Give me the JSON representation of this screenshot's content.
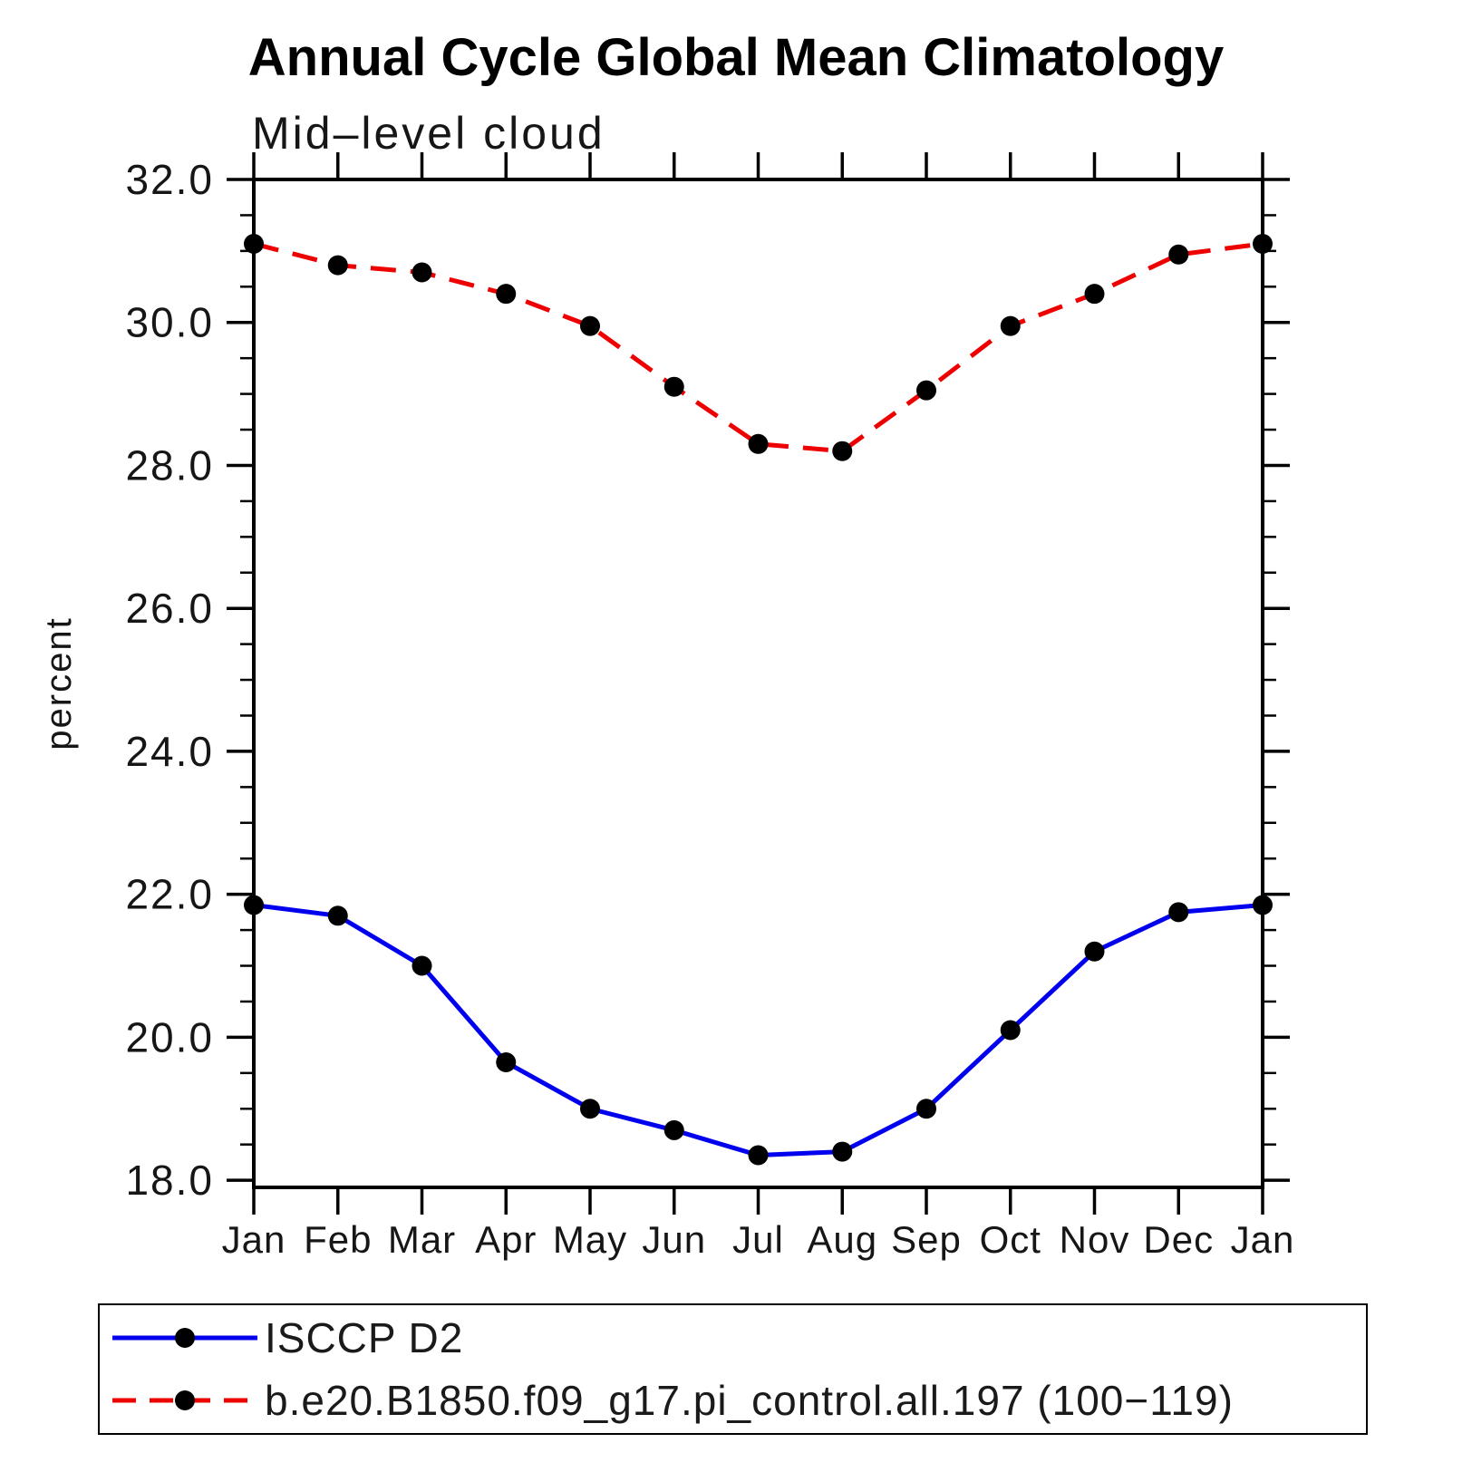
{
  "page": {
    "background": "#ffffff"
  },
  "chart_data": {
    "type": "line",
    "title": "Annual Cycle Global Mean Climatology",
    "subtitle": "Mid–level cloud",
    "xlabel": "",
    "ylabel": "percent",
    "x_categories": [
      "Jan",
      "Feb",
      "Mar",
      "Apr",
      "May",
      "Jun",
      "Jul",
      "Aug",
      "Sep",
      "Oct",
      "Nov",
      "Dec",
      "Jan"
    ],
    "ylim": [
      17.9,
      32.0
    ],
    "y_major_ticks": [
      18,
      20,
      22,
      24,
      26,
      28,
      30,
      32
    ],
    "y_tick_labels": [
      "18.0",
      "20.0",
      "22.0",
      "24.0",
      "26.0",
      "28.0",
      "30.0",
      "32.0"
    ],
    "y_minor_step": 0.5,
    "grid": "off",
    "axis_color": "#000000",
    "legend_position": "bottom",
    "series": [
      {
        "name": "ISCCP D2",
        "color": "#0000ee",
        "line_style": "solid",
        "marker": "filled-circle",
        "marker_color": "#000000",
        "values": [
          21.85,
          21.7,
          21.0,
          19.65,
          19.0,
          18.7,
          18.35,
          18.4,
          19.0,
          20.1,
          21.2,
          21.75,
          21.85
        ]
      },
      {
        "name": "b.e20.B1850.f09_g17.pi_control.all.197 (100−119)",
        "color": "#ee0000",
        "line_style": "dashed",
        "marker": "filled-circle",
        "marker_color": "#000000",
        "values": [
          31.1,
          30.8,
          30.7,
          30.4,
          29.95,
          29.1,
          28.3,
          28.2,
          29.05,
          29.95,
          30.4,
          30.95,
          31.1
        ]
      }
    ]
  }
}
